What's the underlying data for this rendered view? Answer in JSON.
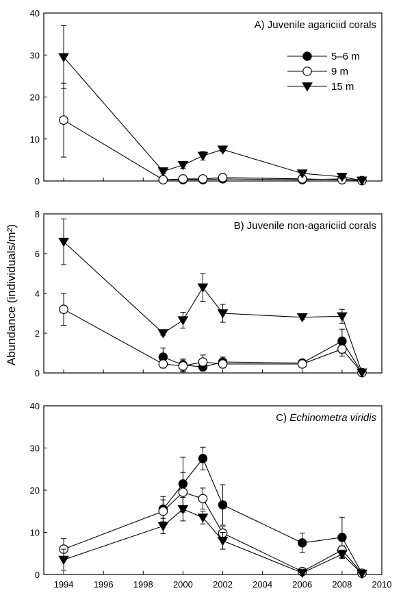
{
  "figure": {
    "ylabel": "Abundance (individuals/m²)"
  },
  "chart_data": [
    {
      "type": "line",
      "title": "A) Juvenile agariciid corals",
      "xlabel": "",
      "ylabel": "",
      "ylim": [
        0,
        40
      ],
      "yticks": [
        0,
        10,
        20,
        30,
        40
      ],
      "xlim": [
        1993,
        2010
      ],
      "show_x_ticklabels": false,
      "legend": "top-right",
      "series": [
        {
          "name": "5–6 m",
          "marker": "filled-circle",
          "x": [
            1999,
            2000,
            2001,
            2002,
            2006,
            2008,
            2009
          ],
          "y": [
            0.3,
            0.3,
            0.3,
            0.5,
            0.3,
            0.5,
            0.1
          ],
          "err": [
            0.3,
            0.3,
            0.3,
            0.3,
            0.3,
            0.5,
            0.3
          ]
        },
        {
          "name": "9 m",
          "marker": "open-circle",
          "x": [
            1994,
            1999,
            2000,
            2001,
            2002,
            2006,
            2008,
            2009
          ],
          "y": [
            14.5,
            0.3,
            0.5,
            0.5,
            0.8,
            0.5,
            0.3,
            0.1
          ],
          "err": [
            8.8,
            0.3,
            0.3,
            0.3,
            0.5,
            0.3,
            0.3,
            0.3
          ]
        },
        {
          "name": "15 m",
          "marker": "filled-triangle-down",
          "x": [
            1994,
            1999,
            2000,
            2001,
            2002,
            2006,
            2008,
            2009
          ],
          "y": [
            29.5,
            2.3,
            3.8,
            6.0,
            7.5,
            1.8,
            1.0,
            0.1
          ],
          "err": [
            7.5,
            0.5,
            0.8,
            1.0,
            0.5,
            0.4,
            0.4,
            0.3
          ]
        }
      ]
    },
    {
      "type": "line",
      "title": "B) Juvenile non-agariciid corals",
      "xlabel": "",
      "ylabel": "",
      "ylim": [
        0,
        8
      ],
      "yticks": [
        0,
        2,
        4,
        6,
        8
      ],
      "xlim": [
        1993,
        2010
      ],
      "show_x_ticklabels": false,
      "series": [
        {
          "name": "5–6 m",
          "marker": "filled-circle",
          "x": [
            1999,
            2000,
            2001,
            2002,
            2006,
            2008,
            2009
          ],
          "y": [
            0.8,
            0.4,
            0.3,
            0.55,
            0.5,
            1.6,
            0.02
          ],
          "err": [
            0.45,
            0.3,
            0.2,
            0.25,
            0.15,
            0.6,
            0.05
          ]
        },
        {
          "name": "9 m",
          "marker": "open-circle",
          "x": [
            1994,
            1999,
            2000,
            2001,
            2002,
            2006,
            2008,
            2009
          ],
          "y": [
            3.2,
            0.45,
            0.35,
            0.55,
            0.45,
            0.45,
            1.2,
            0.02
          ],
          "err": [
            0.8,
            0.2,
            0.3,
            0.35,
            0.2,
            0.15,
            0.35,
            0.05
          ]
        },
        {
          "name": "15 m",
          "marker": "filled-triangle-down",
          "x": [
            1994,
            1999,
            2000,
            2001,
            2002,
            2006,
            2008,
            2009
          ],
          "y": [
            6.6,
            2.0,
            2.65,
            4.3,
            3.0,
            2.8,
            2.85,
            0.02
          ],
          "err": [
            1.15,
            0.1,
            0.4,
            0.7,
            0.45,
            0.1,
            0.35,
            0.05
          ]
        }
      ]
    },
    {
      "type": "line",
      "title_prefix": "C) ",
      "title_italic": "Echinometra viridis",
      "xlabel": "",
      "ylabel": "",
      "ylim": [
        0,
        40
      ],
      "yticks": [
        0,
        10,
        20,
        30,
        40
      ],
      "xlim": [
        1993,
        2010
      ],
      "xticks": [
        1994,
        1996,
        1998,
        2000,
        2002,
        2004,
        2006,
        2008,
        2010
      ],
      "show_x_ticklabels": true,
      "series": [
        {
          "name": "5–6 m",
          "marker": "filled-circle",
          "x": [
            1999,
            2000,
            2001,
            2002,
            2006,
            2008,
            2009
          ],
          "y": [
            15.5,
            21.5,
            27.5,
            16.5,
            7.5,
            8.8,
            0.3
          ],
          "err": [
            3.0,
            6.3,
            2.7,
            4.8,
            2.3,
            4.8,
            0.3
          ]
        },
        {
          "name": "9 m",
          "marker": "open-circle",
          "x": [
            1994,
            1999,
            2000,
            2001,
            2002,
            2006,
            2008,
            2009
          ],
          "y": [
            6.0,
            15.0,
            19.5,
            18.0,
            9.8,
            0.7,
            5.8,
            0.3
          ],
          "err": [
            2.5,
            2.7,
            4.7,
            2.5,
            1.5,
            0.5,
            1.0,
            0.3
          ]
        },
        {
          "name": "15 m",
          "marker": "filled-triangle-down",
          "x": [
            1994,
            1999,
            2000,
            2001,
            2002,
            2006,
            2008,
            2009
          ],
          "y": [
            3.5,
            11.5,
            15.5,
            13.5,
            8.0,
            0.4,
            4.8,
            0.2
          ],
          "err": [
            2.5,
            1.8,
            2.8,
            1.5,
            2.0,
            0.4,
            1.0,
            0.3
          ]
        }
      ]
    }
  ]
}
